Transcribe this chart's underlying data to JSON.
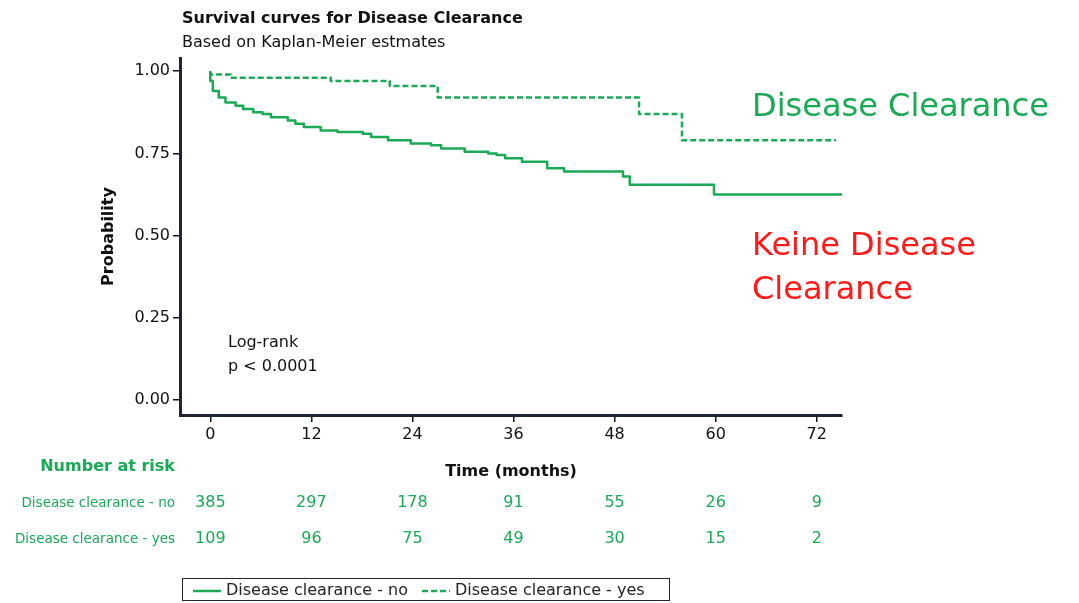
{
  "chart_data": {
    "type": "step",
    "title": "Survival curves for Disease Clearance",
    "subtitle": "Based on Kaplan-Meier estmates",
    "xlabel": "Time (months)",
    "ylabel": "Probability",
    "series": [
      {
        "name": "Disease clearance - no",
        "color": "#1aa955",
        "line_style": "solid",
        "x": [
          0,
          0.3,
          1,
          1.8,
          3,
          3.9,
          5.1,
          6.2,
          7.2,
          9.2,
          10.1,
          11.1,
          13.1,
          15.1,
          18.1,
          19.1,
          21.1,
          23.8,
          26.2,
          27.4,
          30.2,
          33,
          34,
          35,
          37,
          40,
          42,
          49,
          49.8,
          59.8,
          61.9,
          75
        ],
        "values": [
          1.0,
          0.97,
          0.94,
          0.92,
          0.905,
          0.895,
          0.885,
          0.875,
          0.87,
          0.86,
          0.85,
          0.84,
          0.83,
          0.82,
          0.815,
          0.81,
          0.8,
          0.79,
          0.78,
          0.775,
          0.765,
          0.755,
          0.75,
          0.745,
          0.735,
          0.725,
          0.705,
          0.695,
          0.68,
          0.655,
          0.625,
          0.625
        ]
      },
      {
        "name": "Disease clearance - yes",
        "color": "#1aa955",
        "line_style": "dashed",
        "x": [
          0,
          2.4,
          14.3,
          21.3,
          27,
          50.9,
          56,
          61.9,
          74.3
        ],
        "values": [
          1.0,
          0.99,
          0.98,
          0.97,
          0.955,
          0.92,
          0.87,
          0.79,
          0.79
        ]
      }
    ],
    "xlim": [
      -3.6,
      75
    ],
    "xticks": [
      0,
      12,
      24,
      36,
      48,
      60,
      72
    ],
    "ylim": [
      -0.045,
      1.04
    ],
    "yticks": [
      {
        "value": 0,
        "label": "0.00"
      },
      {
        "value": 0.25,
        "label": "0.25"
      },
      {
        "value": 0.5,
        "label": "0.50"
      },
      {
        "value": 0.75,
        "label": "0.75"
      },
      {
        "value": 1,
        "label": "1.00"
      }
    ],
    "grid": false,
    "legend": "bottom",
    "marker": "none",
    "annotations": [
      "Disease Clearance",
      "Keine Disease Clearance",
      "Log-rank\np < 0.0001",
      "Number at risk",
      "Disease clearance - no",
      "385",
      "297",
      "178",
      "91",
      "55",
      "26",
      "9",
      "Disease clearance - yes",
      "109",
      "96",
      "75",
      "49",
      "30",
      "15",
      "2"
    ]
  }
}
